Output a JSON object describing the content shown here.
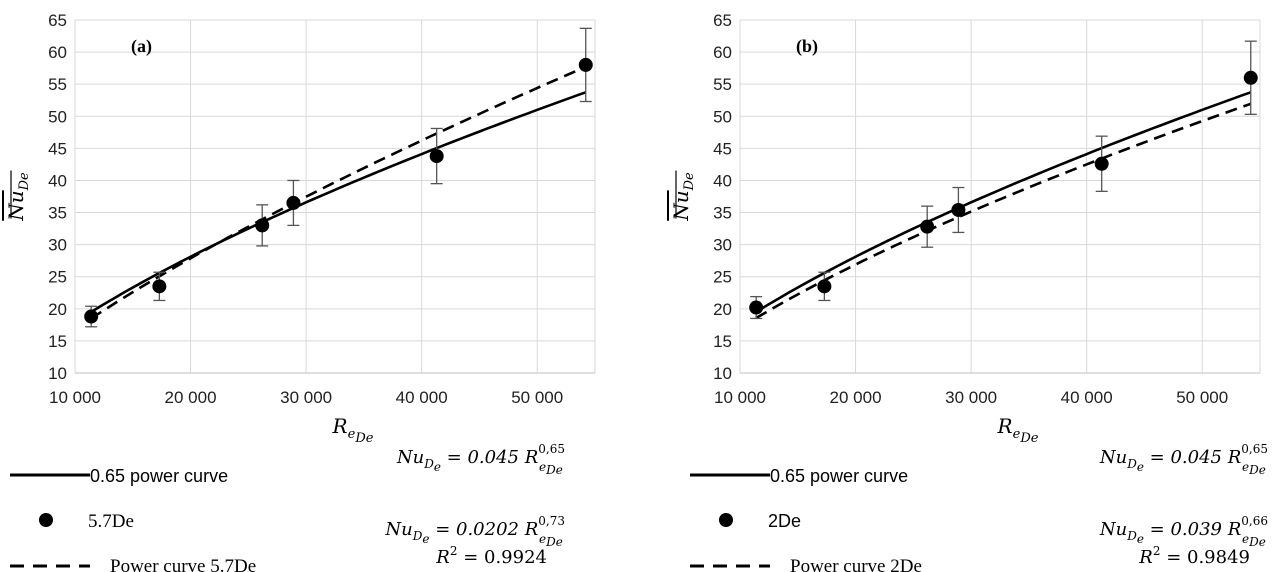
{
  "chart_data": [
    {
      "type": "scatter",
      "panel": "(a)",
      "xlabel": "R",
      "xlabel_sub": "e",
      "xlabel_subsub": "De",
      "ylabel": "Nu",
      "ylabel_sub": "De",
      "xlim": [
        10000,
        55000
      ],
      "ylim": [
        10,
        65
      ],
      "x_ticks": [
        10000,
        20000,
        30000,
        40000,
        50000
      ],
      "x_tick_labels": [
        "10 000",
        "20 000",
        "30 000",
        "40 000",
        "50 000"
      ],
      "y_ticks": [
        10,
        15,
        20,
        25,
        30,
        35,
        40,
        45,
        50,
        55,
        60,
        65
      ],
      "y_tick_labels": [
        "10",
        "15",
        "20",
        "25",
        "30",
        "35",
        "40",
        "45",
        "50",
        "55",
        "60",
        "65"
      ],
      "grid": true,
      "series": [
        {
          "name": "5.7De",
          "kind": "points",
          "x": [
            11400,
            17300,
            26200,
            28900,
            41300,
            54200
          ],
          "y": [
            18.8,
            23.5,
            33.0,
            36.5,
            43.8,
            58.0
          ],
          "err": [
            1.6,
            2.2,
            3.2,
            3.5,
            4.3,
            5.7
          ]
        },
        {
          "name": "0.65 power curve",
          "kind": "line",
          "style": "solid",
          "coef": 0.045,
          "exp": 0.65
        },
        {
          "name": "Power curve 5.7De",
          "kind": "line",
          "style": "dashed",
          "coef": 0.0202,
          "exp": 0.73
        }
      ],
      "equations": [
        {
          "lhs": "Nu",
          "lhs_sub": "D",
          "lhs_subsub": "e",
          "op": "= 0.045 R",
          "r_sub": "e",
          "r_subsub": "De",
          "exp": "0,65"
        },
        {
          "lhs": "Nu",
          "lhs_sub": "D",
          "lhs_subsub": "e",
          "op": "= 0.0202 R",
          "r_sub": "e",
          "r_subsub": "De",
          "exp": "0,73"
        }
      ],
      "r2": {
        "label": "R",
        "sup": "2",
        "value": "= 0.9924"
      }
    },
    {
      "type": "scatter",
      "panel": "(b)",
      "xlabel": "R",
      "xlabel_sub": "e",
      "xlabel_subsub": "De",
      "ylabel": "Nu",
      "ylabel_sub": "De",
      "xlim": [
        10000,
        55000
      ],
      "ylim": [
        10,
        65
      ],
      "x_ticks": [
        10000,
        20000,
        30000,
        40000,
        50000
      ],
      "x_tick_labels": [
        "10 000",
        "20 000",
        "30 000",
        "40 000",
        "50 000"
      ],
      "y_ticks": [
        10,
        15,
        20,
        25,
        30,
        35,
        40,
        45,
        50,
        55,
        60,
        65
      ],
      "y_tick_labels": [
        "10",
        "15",
        "20",
        "25",
        "30",
        "35",
        "40",
        "45",
        "50",
        "55",
        "60",
        "65"
      ],
      "grid": true,
      "series": [
        {
          "name": "2De",
          "kind": "points",
          "x": [
            11400,
            17300,
            26200,
            28900,
            41300,
            54200
          ],
          "y": [
            20.2,
            23.5,
            32.8,
            35.4,
            42.6,
            56.0
          ],
          "err": [
            1.7,
            2.2,
            3.2,
            3.5,
            4.3,
            5.7
          ]
        },
        {
          "name": "0.65 power curve",
          "kind": "line",
          "style": "solid",
          "coef": 0.045,
          "exp": 0.65
        },
        {
          "name": "Power curve 2De",
          "kind": "line",
          "style": "dashed",
          "coef": 0.039,
          "exp": 0.66
        }
      ],
      "equations": [
        {
          "lhs": "Nu",
          "lhs_sub": "D",
          "lhs_subsub": "e",
          "op": "= 0.045 R",
          "r_sub": "e",
          "r_subsub": "De",
          "exp": "0,65"
        },
        {
          "lhs": "Nu",
          "lhs_sub": "D",
          "lhs_subsub": "e",
          "op": "= 0.039 R",
          "r_sub": "e",
          "r_subsub": "De",
          "exp": "0,66"
        }
      ],
      "r2": {
        "label": "R",
        "sup": "2",
        "value": "= 0.9849"
      }
    }
  ],
  "legends": [
    {
      "solid": "0.65 power curve",
      "points": "5.7De",
      "dashed": "Power curve 5.7De",
      "points_font": "serif",
      "dashed_font": "serif"
    },
    {
      "solid": "0.65 power curve",
      "points": "2De",
      "dashed": "Power curve 2De",
      "points_font": "sans",
      "dashed_font": "serif"
    }
  ]
}
